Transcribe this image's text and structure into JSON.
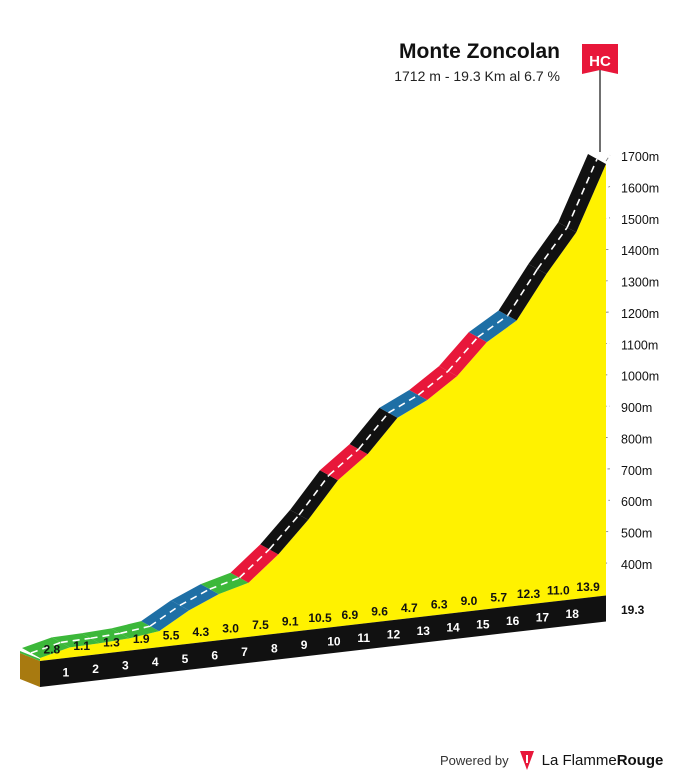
{
  "title": "Monte Zoncolan",
  "subtitle": "1712 m - 19.3 Km al 6.7 %",
  "category_badge": "HC",
  "total_distance_label": "19.3",
  "footer": {
    "powered": "Powered by",
    "brand_light": "La Flamme",
    "brand_bold": "Rouge",
    "logo_icon": "flame-logo-icon"
  },
  "colors": {
    "fill": "#fff200",
    "green": "#3cb83a",
    "blue": "#1e6fa5",
    "red": "#e8173a",
    "black": "#111111",
    "base_side": "#a87a10",
    "badge": "#e8173a"
  },
  "chart_data": {
    "type": "area",
    "title": "Monte Zoncolan",
    "subtitle": "1712 m - 19.3 Km al 6.7 %",
    "xlabel": "",
    "ylabel": "",
    "x_unit": "km",
    "xlim": [
      0,
      19.3
    ],
    "ylim": [
      400,
      1700
    ],
    "y_ticks": [
      400,
      500,
      600,
      700,
      800,
      900,
      1000,
      1100,
      1200,
      1300,
      1400,
      1500,
      1600,
      1700
    ],
    "y_tick_labels": [
      "400m",
      "500m",
      "600m",
      "700m",
      "800m",
      "900m",
      "1000m",
      "1100m",
      "1200m",
      "1300m",
      "1400m",
      "1500m",
      "1600m",
      "1700m"
    ],
    "km_labels": [
      "1",
      "2",
      "3",
      "4",
      "5",
      "6",
      "7",
      "8",
      "9",
      "10",
      "11",
      "12",
      "13",
      "14",
      "15",
      "16",
      "17",
      "18"
    ],
    "segment_gradients": [
      "2.8",
      "1.1",
      "1.3",
      "1.9",
      "5.5",
      "4.3",
      "3.0",
      "7.5",
      "9.1",
      "10.5",
      "6.9",
      "9.6",
      "4.7",
      "6.3",
      "9.0",
      "5.7",
      "12.3",
      "11.0",
      "13.9"
    ],
    "segment_categories": [
      "green",
      "green",
      "green",
      "green",
      "blue",
      "blue",
      "green",
      "red",
      "black",
      "black",
      "red",
      "black",
      "blue",
      "red",
      "red",
      "blue",
      "black",
      "black",
      "black"
    ],
    "grid": true,
    "legend": "none"
  }
}
